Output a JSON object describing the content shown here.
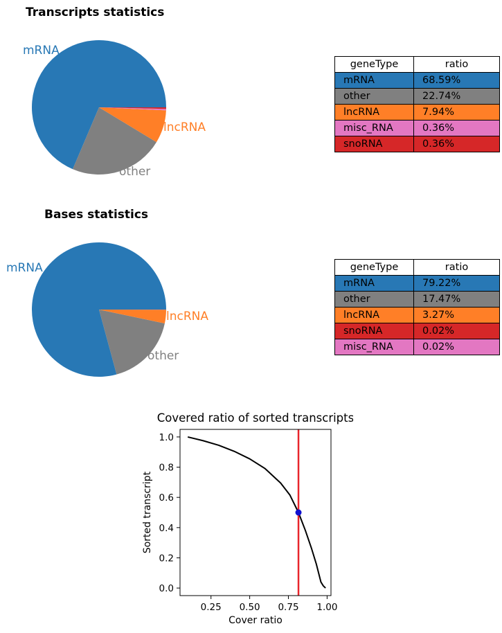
{
  "chart_data": [
    {
      "type": "pie",
      "title": "Transcripts statistics",
      "slices": [
        {
          "label": "mRNA",
          "value": 68.59,
          "color": "#2878b5"
        },
        {
          "label": "other",
          "value": 22.74,
          "color": "#808080"
        },
        {
          "label": "lncRNA",
          "value": 7.94,
          "color": "#ff7f27"
        },
        {
          "label": "misc_RNA",
          "value": 0.36,
          "color": "#e377c2"
        },
        {
          "label": "snoRNA",
          "value": 0.36,
          "color": "#d62728"
        }
      ],
      "outer_labels": [
        "mRNA",
        "other",
        "lncRNA"
      ],
      "table": {
        "headers": [
          "geneType",
          "ratio"
        ],
        "rows": [
          {
            "geneType": "mRNA",
            "ratio": "68.59%",
            "color": "#2878b5"
          },
          {
            "geneType": "other",
            "ratio": "22.74%",
            "color": "#808080"
          },
          {
            "geneType": "lncRNA",
            "ratio": "7.94%",
            "color": "#ff7f27"
          },
          {
            "geneType": "misc_RNA",
            "ratio": "0.36%",
            "color": "#e377c2"
          },
          {
            "geneType": "snoRNA",
            "ratio": "0.36%",
            "color": "#d62728"
          }
        ]
      }
    },
    {
      "type": "pie",
      "title": "Bases statistics",
      "slices": [
        {
          "label": "mRNA",
          "value": 79.22,
          "color": "#2878b5"
        },
        {
          "label": "other",
          "value": 17.47,
          "color": "#808080"
        },
        {
          "label": "lncRNA",
          "value": 3.27,
          "color": "#ff7f27"
        },
        {
          "label": "snoRNA",
          "value": 0.02,
          "color": "#d62728"
        },
        {
          "label": "misc_RNA",
          "value": 0.02,
          "color": "#e377c2"
        }
      ],
      "outer_labels": [
        "mRNA",
        "other",
        "lncRNA"
      ],
      "table": {
        "headers": [
          "geneType",
          "ratio"
        ],
        "rows": [
          {
            "geneType": "mRNA",
            "ratio": "79.22%",
            "color": "#2878b5"
          },
          {
            "geneType": "other",
            "ratio": "17.47%",
            "color": "#808080"
          },
          {
            "geneType": "lncRNA",
            "ratio": "3.27%",
            "color": "#ff7f27"
          },
          {
            "geneType": "snoRNA",
            "ratio": "0.02%",
            "color": "#d62728"
          },
          {
            "geneType": "misc_RNA",
            "ratio": "0.02%",
            "color": "#e377c2"
          }
        ]
      }
    },
    {
      "type": "line",
      "title": "Covered ratio of sorted transcripts",
      "xlabel": "Cover ratio",
      "ylabel": "Sorted transcript",
      "xlim": [
        0.05,
        1.025
      ],
      "ylim": [
        -0.05,
        1.05
      ],
      "xticks": [
        0.25,
        0.5,
        0.75,
        1.0
      ],
      "xtick_labels": [
        "0.25",
        "0.50",
        "0.75",
        "1.00"
      ],
      "yticks": [
        0.0,
        0.2,
        0.4,
        0.6,
        0.8,
        1.0
      ],
      "ytick_labels": [
        "0.0",
        "0.2",
        "0.4",
        "0.6",
        "0.8",
        "1.0"
      ],
      "series": [
        {
          "color": "#000000",
          "x": [
            0.1,
            0.2,
            0.3,
            0.4,
            0.5,
            0.6,
            0.7,
            0.76,
            0.815,
            0.86,
            0.9,
            0.93,
            0.95,
            0.96,
            0.975,
            0.99
          ],
          "y": [
            1.0,
            0.975,
            0.945,
            0.905,
            0.855,
            0.79,
            0.695,
            0.615,
            0.5,
            0.38,
            0.26,
            0.16,
            0.08,
            0.04,
            0.015,
            0.0
          ]
        }
      ],
      "vline": {
        "x": 0.815,
        "color": "#e8252b"
      },
      "marker": {
        "x": 0.815,
        "y": 0.5,
        "color": "#1010d0"
      }
    }
  ]
}
